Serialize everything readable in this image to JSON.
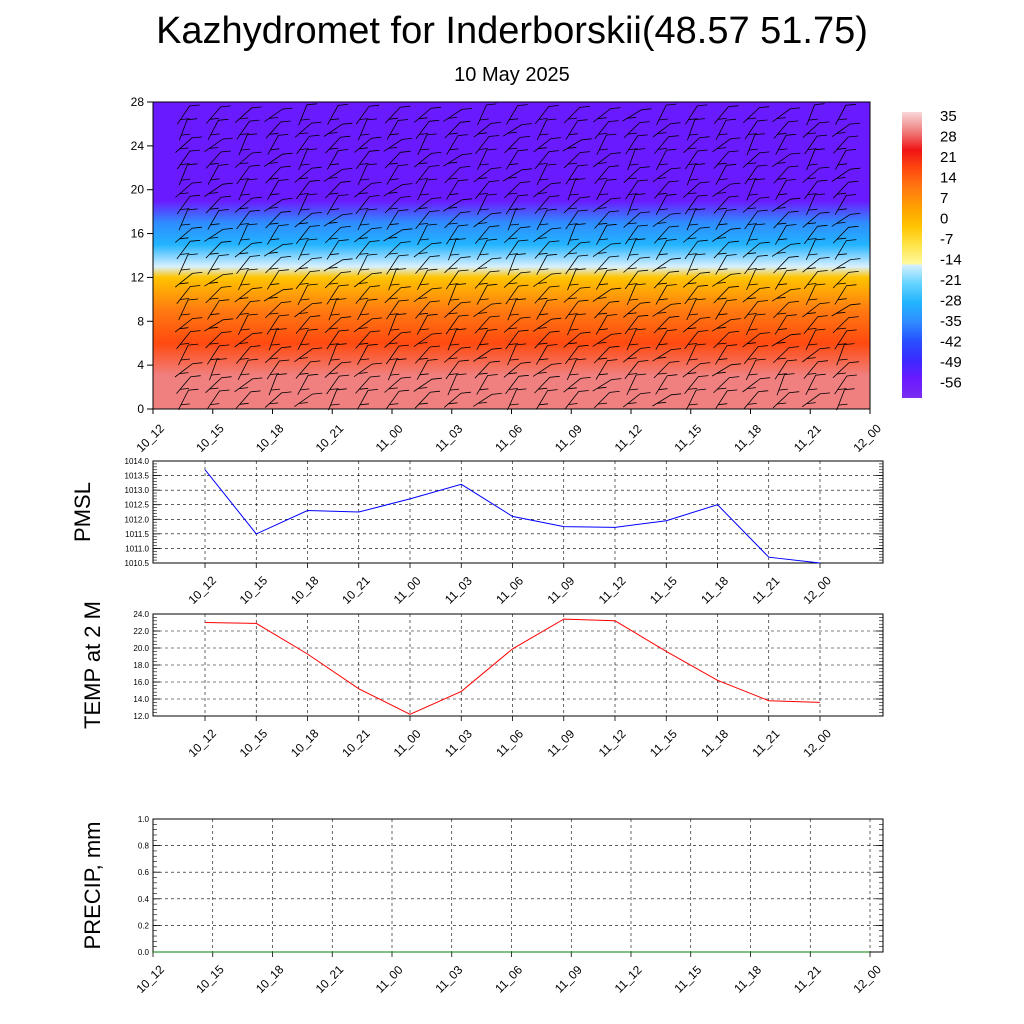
{
  "header": {
    "title": "Kazhydromet for Inderborskii(48.57 51.75)",
    "date": "10 May 2025"
  },
  "colors": {
    "pmsl_line": "#0000ff",
    "temp_line": "#ff0000",
    "precip_line": "#008000",
    "grid": "#000000"
  },
  "chart_data": [
    {
      "type": "heatmap",
      "title": "Kazhydromet for Inderborskii(48.57 51.75)",
      "subtitle": "10 May 2025",
      "x_ticks": [
        "10_12",
        "10_15",
        "10_18",
        "10_21",
        "11_00",
        "11_03",
        "11_06",
        "11_09",
        "11_12",
        "11_15",
        "11_18",
        "11_21",
        "12_00"
      ],
      "y_ticks": [
        0,
        4,
        8,
        12,
        16,
        20,
        24,
        28
      ],
      "ylim": [
        0,
        28
      ],
      "colorbar_labels": [
        "35",
        "28",
        "21",
        "14",
        "7",
        "0",
        "-7",
        "-14",
        "-21",
        "-28",
        "-35",
        "-42",
        "-49",
        "-56"
      ],
      "colorbar_range": [
        -63,
        42
      ],
      "wind_barbs": true,
      "level_temperature_profile": [
        {
          "y": 0,
          "value": 30
        },
        {
          "y": 3,
          "value": 34
        },
        {
          "y": 6,
          "value": 21
        },
        {
          "y": 9,
          "value": 12
        },
        {
          "y": 12,
          "value": 0
        },
        {
          "y": 13,
          "value": -14
        },
        {
          "y": 15,
          "value": -28
        },
        {
          "y": 17,
          "value": -40
        },
        {
          "y": 19,
          "value": -56
        },
        {
          "y": 22,
          "value": -62
        },
        {
          "y": 25,
          "value": -58
        },
        {
          "y": 28,
          "value": -57
        }
      ]
    },
    {
      "type": "line",
      "ylabel": "PMSL",
      "x": [
        "10_12",
        "10_15",
        "10_18",
        "10_21",
        "11_00",
        "11_03",
        "11_06",
        "11_09",
        "11_12",
        "11_15",
        "11_18",
        "11_21",
        "12_00"
      ],
      "y_ticks": [
        "1010.5",
        "1011.0",
        "1011.5",
        "1012.0",
        "1012.5",
        "1013.0",
        "1013.5",
        "1014.0"
      ],
      "ylim": [
        1010.5,
        1014.0
      ],
      "values": [
        1013.7,
        1011.5,
        1012.3,
        1012.25,
        1012.7,
        1013.2,
        1012.1,
        1011.75,
        1011.72,
        1011.95,
        1012.5,
        1010.7,
        1010.5
      ]
    },
    {
      "type": "line",
      "ylabel": "TEMP at 2 M",
      "x": [
        "10_12",
        "10_15",
        "10_18",
        "10_21",
        "11_00",
        "11_03",
        "11_06",
        "11_09",
        "11_12",
        "11_15",
        "11_18",
        "11_21",
        "12_00"
      ],
      "y_ticks": [
        "12.0",
        "14.0",
        "16.0",
        "18.0",
        "20.0",
        "22.0",
        "24.0"
      ],
      "ylim": [
        12.0,
        24.0
      ],
      "values": [
        23.0,
        22.9,
        19.3,
        15.2,
        12.2,
        14.9,
        19.9,
        23.4,
        23.2,
        19.6,
        16.2,
        13.8,
        13.6
      ]
    },
    {
      "type": "line",
      "ylabel": "PRECIP, mm",
      "x": [
        "10_12",
        "10_15",
        "10_18",
        "10_21",
        "11_00",
        "11_03",
        "11_06",
        "11_09",
        "11_12",
        "11_15",
        "11_18",
        "11_21",
        "12_00"
      ],
      "y_ticks": [
        "0.0",
        "0.2",
        "0.4",
        "0.6",
        "0.8",
        "1.0"
      ],
      "ylim": [
        0.0,
        1.0
      ],
      "values": [
        0,
        0,
        0,
        0,
        0,
        0,
        0,
        0,
        0,
        0,
        0,
        0,
        0
      ]
    }
  ]
}
